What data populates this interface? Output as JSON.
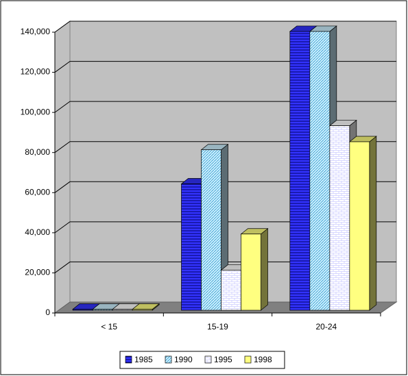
{
  "chart_data": {
    "type": "bar3d",
    "categories": [
      "< 15",
      "15-19",
      "20-24"
    ],
    "series": [
      {
        "name": "1985",
        "color": "#3333ff",
        "values": [
          500,
          63000,
          139000
        ]
      },
      {
        "name": "1990",
        "color": "#ccf0ff",
        "values": [
          500,
          80000,
          139000
        ]
      },
      {
        "name": "1995",
        "color": "#ffffff",
        "values": [
          500,
          20000,
          92000
        ]
      },
      {
        "name": "1998",
        "color": "#ffff80",
        "values": [
          500,
          38000,
          84000
        ]
      }
    ],
    "ylim": [
      0,
      140000
    ],
    "yticks": [
      0,
      {
        "value": 20000,
        "label": "20,000"
      },
      {
        "value": 40000,
        "label": "40,000"
      },
      {
        "value": 60000,
        "label": "60,000"
      },
      {
        "value": 80000,
        "label": "80,000"
      },
      {
        "value": 100000,
        "label": "100,000"
      },
      {
        "value": 120000,
        "label": "120,000"
      },
      {
        "value": 140000,
        "label": "140,000"
      }
    ],
    "grid": true,
    "legend": "bottom"
  }
}
